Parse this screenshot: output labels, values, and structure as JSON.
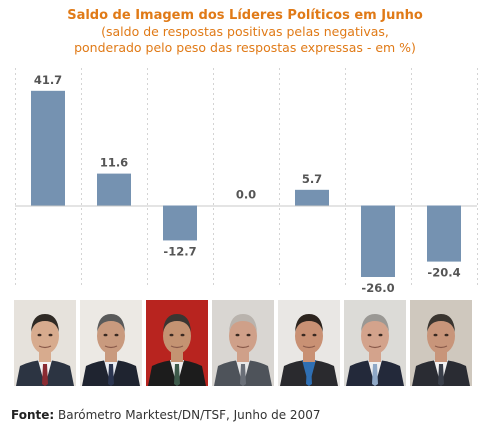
{
  "header": {
    "title": "Saldo de Imagem dos Líderes Políticos em Junho",
    "subtitle_line1": "(saldo de respostas positivas pelas negativas,",
    "subtitle_line2": "ponderado pelo peso das respostas expressas - em %)"
  },
  "chart_data": {
    "type": "bar",
    "categories": [
      "",
      "",
      "",
      "",
      "",
      "",
      ""
    ],
    "values": [
      41.7,
      11.6,
      -12.7,
      0.0,
      5.7,
      -26.0,
      -20.4
    ],
    "value_labels": [
      "41.7",
      "11.6",
      "-12.7",
      "0.0",
      "5.7",
      "-26.0",
      "-20.4"
    ],
    "ylim": [
      -30,
      50
    ],
    "bar_color": "#7592b1",
    "label_color": "#555555",
    "grid": "vertical-dashed"
  },
  "photos": {
    "items": [
      {
        "bg": "#e6e2dc",
        "skin": "#d7ab8e",
        "hair": "#2f2a25",
        "suit": "#2c3442",
        "shirt": "#f4f4f4",
        "tie": "#8a2b32"
      },
      {
        "bg": "#ece9e4",
        "skin": "#c99a7e",
        "hair": "#5a5a5a",
        "suit": "#1f2430",
        "shirt": "#e9ecf2",
        "tie": "#2b3550"
      },
      {
        "bg": "#b8241f",
        "skin": "#c49372",
        "hair": "#3a3632",
        "suit": "#1c1c1c",
        "shirt": "#eeeeee",
        "tie": "#3d5a4a"
      },
      {
        "bg": "#d9d6d2",
        "skin": "#cfa089",
        "hair": "#b9b3ad",
        "suit": "#4e535a",
        "shirt": "#e8e8e8",
        "tie": "#6a6f78"
      },
      {
        "bg": "#e9e7e4",
        "skin": "#c99174",
        "hair": "#2c241e",
        "suit": "#2a2a2e",
        "shirt": "#2f6fb3",
        "tie": "#2f6fb3"
      },
      {
        "bg": "#dcdbd7",
        "skin": "#d3a38c",
        "hair": "#9a9894",
        "suit": "#23293a",
        "shirt": "#f0f0f0",
        "tie": "#8fa8c6"
      },
      {
        "bg": "#cfc8be",
        "skin": "#c8957a",
        "hair": "#3a3530",
        "suit": "#2a2c33",
        "shirt": "#f2f2f2",
        "tie": "#3a3f4a"
      }
    ]
  },
  "footer": {
    "source_label": "Fonte:",
    "source_text": " Barómetro Marktest/DN/TSF, Junho de 2007"
  }
}
